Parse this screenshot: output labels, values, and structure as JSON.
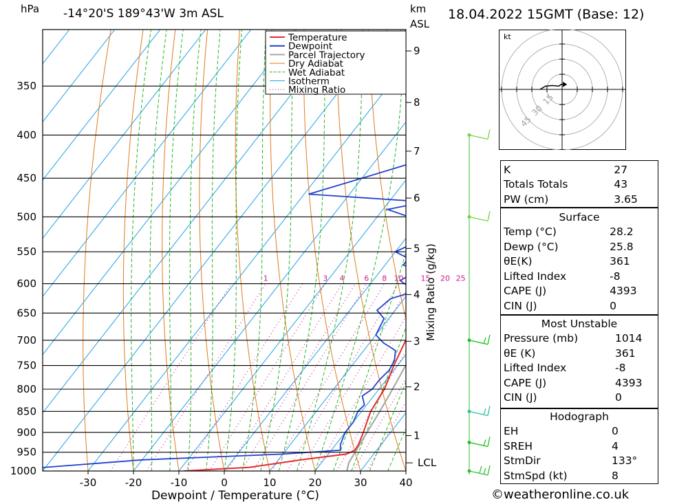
{
  "header": {
    "hpa_label": "hPa",
    "location": "-14°20'S  189°43'W  3m  ASL",
    "km_label": "km",
    "asl_label": "ASL",
    "datetime": "18.04.2022  15GMT  (Base: 12)"
  },
  "legend": [
    "Temperature",
    "Dewpoint",
    "Parcel Trajectory",
    "Dry Adiabat",
    "Wet Adiabat",
    "Isotherm",
    "Mixing Ratio"
  ],
  "colors": {
    "temperature": "#e8282d",
    "dewpoint": "#1f3fd0",
    "parcel": "#a9a9a9",
    "dry_adiabat": "#e07a1a",
    "wet_adiabat": "#22b522",
    "isotherm": "#1fa0e6",
    "mixing_ratio": "#cc1d8a",
    "wind": "#7ad23c"
  },
  "chart_data": {
    "type": "line",
    "title": "-14°20'S  189°43'W  3m  ASL",
    "xlabel": "Dewpoint / Temperature (°C)",
    "ylabel": "hPa",
    "y2label": "Mixing Ratio (g/kg)",
    "xlim": [
      -40,
      40
    ],
    "ylim": [
      1000,
      300
    ],
    "x_ticks": [
      "-30",
      "-20",
      "-10",
      "0",
      "10",
      "20",
      "30",
      "40"
    ],
    "pressure_ticks": [
      350,
      400,
      450,
      500,
      550,
      600,
      650,
      700,
      750,
      800,
      850,
      900,
      950,
      1000
    ],
    "km_ticks": [
      {
        "label": "1",
        "p": 908
      },
      {
        "label": "2",
        "p": 795
      },
      {
        "label": "3",
        "p": 702
      },
      {
        "label": "4",
        "p": 618
      },
      {
        "label": "5",
        "p": 545
      },
      {
        "label": "6",
        "p": 475
      },
      {
        "label": "7",
        "p": 418
      },
      {
        "label": "8",
        "p": 366
      },
      {
        "label": "9",
        "p": 318
      }
    ],
    "lcl": {
      "label": "LCL",
      "p": 978
    },
    "mixing_ratio_labels": [
      "1",
      "3",
      "4",
      "6",
      "8",
      "10",
      "15",
      "20",
      "25"
    ],
    "series": [
      {
        "name": "Temperature",
        "points": [
          [
            1000,
            -9
          ],
          [
            990,
            5
          ],
          [
            970,
            15
          ],
          [
            955,
            24
          ],
          [
            945,
            25.2
          ],
          [
            930,
            25
          ],
          [
            900,
            24
          ],
          [
            875,
            23
          ],
          [
            850,
            22
          ],
          [
            800,
            21.2
          ],
          [
            750,
            19.2
          ],
          [
            700,
            17.5
          ],
          [
            650,
            15.2
          ],
          [
            600,
            12.2
          ],
          [
            550,
            9.2
          ],
          [
            500,
            7
          ],
          [
            480,
            6.2
          ],
          [
            450,
            3
          ],
          [
            400,
            -1
          ],
          [
            380,
            -2.5
          ],
          [
            350,
            -6
          ],
          [
            330,
            -9
          ],
          [
            300,
            -13
          ]
        ]
      },
      {
        "name": "Dewpoint",
        "points": [
          [
            1000,
            -48
          ],
          [
            990,
            -40
          ],
          [
            970,
            -20
          ],
          [
            955,
            10
          ],
          [
            945,
            22
          ],
          [
            930,
            21
          ],
          [
            900,
            20
          ],
          [
            875,
            20
          ],
          [
            850,
            19.2
          ],
          [
            835,
            19.5
          ],
          [
            815,
            17.5
          ],
          [
            800,
            18.5
          ],
          [
            780,
            18.5
          ],
          [
            760,
            19
          ],
          [
            740,
            18.5
          ],
          [
            720,
            17
          ],
          [
            705,
            13
          ],
          [
            690,
            10
          ],
          [
            660,
            9
          ],
          [
            645,
            6
          ],
          [
            625,
            7
          ],
          [
            610,
            12
          ],
          [
            605,
            9
          ],
          [
            595,
            6
          ],
          [
            580,
            8
          ],
          [
            570,
            4
          ],
          [
            560,
            4
          ],
          [
            550,
            0
          ],
          [
            540,
            2
          ],
          [
            520,
            -1
          ],
          [
            510,
            -2
          ],
          [
            500,
            -3
          ],
          [
            490,
            -9
          ],
          [
            480,
            -2
          ],
          [
            470,
            -29
          ],
          [
            450,
            -20
          ],
          [
            420,
            -6
          ],
          [
            410,
            -8
          ],
          [
            395,
            -8
          ],
          [
            390,
            -11
          ],
          [
            360,
            -18
          ],
          [
            350,
            -18
          ],
          [
            320,
            -15
          ],
          [
            310,
            -17
          ],
          [
            300,
            -17
          ]
        ]
      },
      {
        "name": "Parcel Trajectory",
        "points": [
          [
            1000,
            27
          ],
          [
            978,
            26
          ],
          [
            950,
            25.6
          ],
          [
            900,
            24.8
          ],
          [
            850,
            24
          ],
          [
            800,
            23
          ],
          [
            750,
            21.8
          ],
          [
            700,
            20.3
          ],
          [
            650,
            18.6
          ],
          [
            600,
            16.5
          ],
          [
            550,
            14.2
          ],
          [
            500,
            11.6
          ],
          [
            450,
            8.8
          ],
          [
            400,
            5.5
          ],
          [
            380,
            4
          ],
          [
            350,
            1.5
          ],
          [
            320,
            -1.5
          ]
        ]
      }
    ]
  },
  "winds": [
    {
      "level": "400",
      "speed_kt": 10,
      "color": "#7ad23c"
    },
    {
      "level": "500",
      "speed_kt": 10,
      "color": "#7ad23c"
    },
    {
      "level": "700",
      "speed_kt": 12,
      "color": "#22c222"
    },
    {
      "level": "850",
      "speed_kt": 12,
      "color": "#2fbfa0"
    },
    {
      "level": "925",
      "speed_kt": 12,
      "color": "#22c222"
    },
    {
      "level": "1000",
      "speed_kt": 15,
      "color": "#2fbf3a"
    }
  ],
  "hodograph": {
    "unit": "kt",
    "ring_labels": [
      "15",
      "30",
      "45"
    ],
    "trace": [
      [
        -40,
        0
      ],
      [
        -30,
        6
      ],
      [
        -18,
        7
      ],
      [
        -6,
        6
      ],
      [
        -2,
        9
      ],
      [
        4,
        9
      ]
    ]
  },
  "indices": [
    {
      "label": "K",
      "value": "27"
    },
    {
      "label": "Totals Totals",
      "value": "43"
    },
    {
      "label": "PW (cm)",
      "value": "3.65"
    }
  ],
  "surface": {
    "title": "Surface",
    "rows": [
      {
        "label": "Temp (°C)",
        "value": "28.2"
      },
      {
        "label": "Dewp (°C)",
        "value": "25.8"
      },
      {
        "label": "θE(K)",
        "value": "361"
      },
      {
        "label": "Lifted Index",
        "value": "-8"
      },
      {
        "label": "CAPE (J)",
        "value": "4393"
      },
      {
        "label": "CIN (J)",
        "value": "0"
      }
    ]
  },
  "most_unstable": {
    "title": "Most Unstable",
    "rows": [
      {
        "label": "Pressure (mb)",
        "value": "1014"
      },
      {
        "label": "θE (K)",
        "value": "361"
      },
      {
        "label": "Lifted Index",
        "value": "-8"
      },
      {
        "label": "CAPE (J)",
        "value": "4393"
      },
      {
        "label": "CIN (J)",
        "value": "0"
      }
    ]
  },
  "hodograph_table": {
    "title": "Hodograph",
    "rows": [
      {
        "label": "EH",
        "value": "0"
      },
      {
        "label": "SREH",
        "value": "4"
      },
      {
        "label": "StmDir",
        "value": "133°"
      },
      {
        "label": "StmSpd (kt)",
        "value": "8"
      }
    ]
  },
  "credit": "©weatheronline.co.uk"
}
